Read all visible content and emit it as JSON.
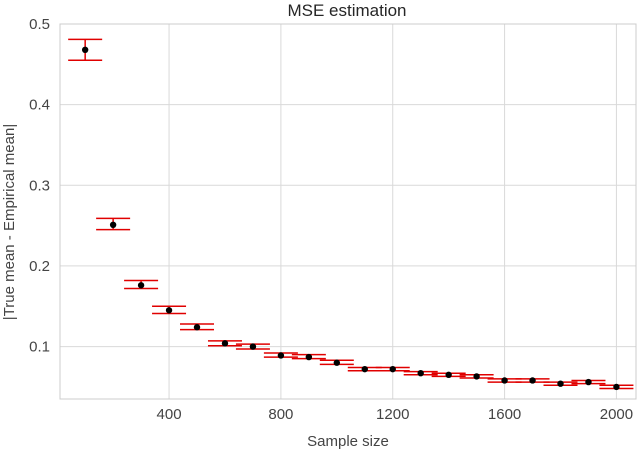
{
  "chart_data": {
    "type": "scatter",
    "title": "MSE estimation",
    "xlabel": "Sample size",
    "ylabel": "|True mean - Empirical mean|",
    "xlim": [
      10,
      2070
    ],
    "ylim": [
      0.035,
      0.5
    ],
    "xticks": [
      {
        "value": 400,
        "label": "400"
      },
      {
        "value": 800,
        "label": "800"
      },
      {
        "value": 1200,
        "label": "1200"
      },
      {
        "value": 1600,
        "label": "1600"
      },
      {
        "value": 2000,
        "label": "2000"
      }
    ],
    "yticks": [
      {
        "value": 0.1,
        "label": "0.1"
      },
      {
        "value": 0.2,
        "label": "0.2"
      },
      {
        "value": 0.3,
        "label": "0.3"
      },
      {
        "value": 0.4,
        "label": "0.4"
      },
      {
        "value": 0.5,
        "label": "0.5"
      }
    ],
    "grid": true,
    "errorbar_color": "#e00000",
    "marker_color": "#000000",
    "series": [
      {
        "points": [
          {
            "x": 100,
            "y": 0.468,
            "lo": 0.455,
            "hi": 0.481
          },
          {
            "x": 200,
            "y": 0.251,
            "lo": 0.245,
            "hi": 0.259
          },
          {
            "x": 300,
            "y": 0.176,
            "lo": 0.172,
            "hi": 0.182
          },
          {
            "x": 400,
            "y": 0.145,
            "lo": 0.141,
            "hi": 0.15
          },
          {
            "x": 500,
            "y": 0.124,
            "lo": 0.121,
            "hi": 0.128
          },
          {
            "x": 600,
            "y": 0.104,
            "lo": 0.101,
            "hi": 0.107
          },
          {
            "x": 700,
            "y": 0.1,
            "lo": 0.097,
            "hi": 0.103
          },
          {
            "x": 800,
            "y": 0.089,
            "lo": 0.087,
            "hi": 0.092
          },
          {
            "x": 900,
            "y": 0.087,
            "lo": 0.085,
            "hi": 0.09
          },
          {
            "x": 1000,
            "y": 0.08,
            "lo": 0.078,
            "hi": 0.083
          },
          {
            "x": 1100,
            "y": 0.072,
            "lo": 0.07,
            "hi": 0.074
          },
          {
            "x": 1200,
            "y": 0.072,
            "lo": 0.07,
            "hi": 0.074
          },
          {
            "x": 1300,
            "y": 0.067,
            "lo": 0.065,
            "hi": 0.069
          },
          {
            "x": 1400,
            "y": 0.065,
            "lo": 0.063,
            "hi": 0.067
          },
          {
            "x": 1500,
            "y": 0.063,
            "lo": 0.061,
            "hi": 0.065
          },
          {
            "x": 1600,
            "y": 0.058,
            "lo": 0.056,
            "hi": 0.06
          },
          {
            "x": 1700,
            "y": 0.058,
            "lo": 0.056,
            "hi": 0.06
          },
          {
            "x": 1800,
            "y": 0.054,
            "lo": 0.052,
            "hi": 0.056
          },
          {
            "x": 1900,
            "y": 0.056,
            "lo": 0.054,
            "hi": 0.058
          },
          {
            "x": 2000,
            "y": 0.05,
            "lo": 0.048,
            "hi": 0.052
          }
        ]
      }
    ]
  }
}
